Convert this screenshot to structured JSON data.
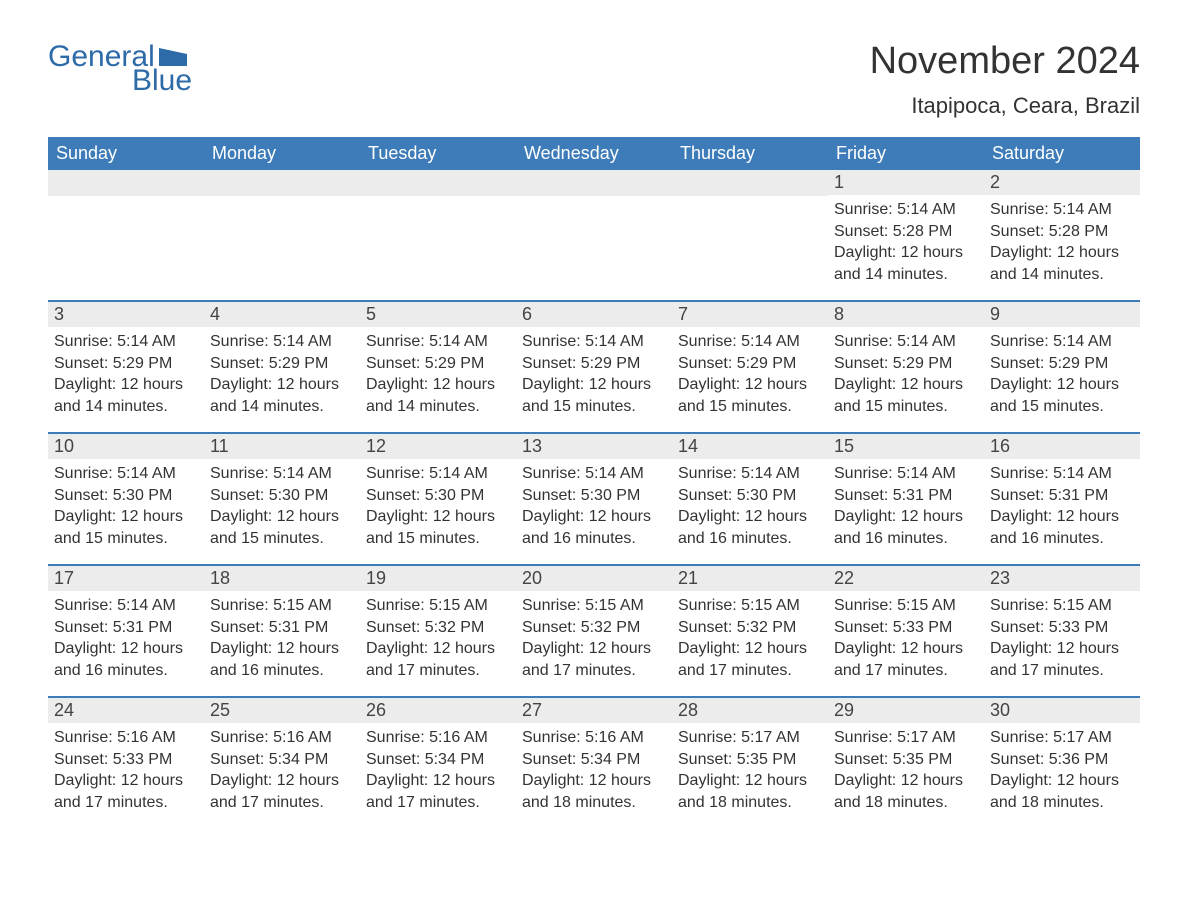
{
  "logo": {
    "text1": "General",
    "text2": "Blue",
    "shape_color": "#2d6aa8"
  },
  "title": "November 2024",
  "location": "Itapipoca, Ceara, Brazil",
  "colors": {
    "header_bg": "#3d7cb8",
    "header_text": "#ffffff",
    "daynum_bg": "#ececec",
    "border": "#3d7cb8",
    "text": "#333333",
    "logo": "#2d6aa8"
  },
  "weekdays": [
    "Sunday",
    "Monday",
    "Tuesday",
    "Wednesday",
    "Thursday",
    "Friday",
    "Saturday"
  ],
  "weeks": [
    [
      null,
      null,
      null,
      null,
      null,
      {
        "n": "1",
        "sunrise": "5:14 AM",
        "sunset": "5:28 PM",
        "daylight": "12 hours and 14 minutes."
      },
      {
        "n": "2",
        "sunrise": "5:14 AM",
        "sunset": "5:28 PM",
        "daylight": "12 hours and 14 minutes."
      }
    ],
    [
      {
        "n": "3",
        "sunrise": "5:14 AM",
        "sunset": "5:29 PM",
        "daylight": "12 hours and 14 minutes."
      },
      {
        "n": "4",
        "sunrise": "5:14 AM",
        "sunset": "5:29 PM",
        "daylight": "12 hours and 14 minutes."
      },
      {
        "n": "5",
        "sunrise": "5:14 AM",
        "sunset": "5:29 PM",
        "daylight": "12 hours and 14 minutes."
      },
      {
        "n": "6",
        "sunrise": "5:14 AM",
        "sunset": "5:29 PM",
        "daylight": "12 hours and 15 minutes."
      },
      {
        "n": "7",
        "sunrise": "5:14 AM",
        "sunset": "5:29 PM",
        "daylight": "12 hours and 15 minutes."
      },
      {
        "n": "8",
        "sunrise": "5:14 AM",
        "sunset": "5:29 PM",
        "daylight": "12 hours and 15 minutes."
      },
      {
        "n": "9",
        "sunrise": "5:14 AM",
        "sunset": "5:29 PM",
        "daylight": "12 hours and 15 minutes."
      }
    ],
    [
      {
        "n": "10",
        "sunrise": "5:14 AM",
        "sunset": "5:30 PM",
        "daylight": "12 hours and 15 minutes."
      },
      {
        "n": "11",
        "sunrise": "5:14 AM",
        "sunset": "5:30 PM",
        "daylight": "12 hours and 15 minutes."
      },
      {
        "n": "12",
        "sunrise": "5:14 AM",
        "sunset": "5:30 PM",
        "daylight": "12 hours and 15 minutes."
      },
      {
        "n": "13",
        "sunrise": "5:14 AM",
        "sunset": "5:30 PM",
        "daylight": "12 hours and 16 minutes."
      },
      {
        "n": "14",
        "sunrise": "5:14 AM",
        "sunset": "5:30 PM",
        "daylight": "12 hours and 16 minutes."
      },
      {
        "n": "15",
        "sunrise": "5:14 AM",
        "sunset": "5:31 PM",
        "daylight": "12 hours and 16 minutes."
      },
      {
        "n": "16",
        "sunrise": "5:14 AM",
        "sunset": "5:31 PM",
        "daylight": "12 hours and 16 minutes."
      }
    ],
    [
      {
        "n": "17",
        "sunrise": "5:14 AM",
        "sunset": "5:31 PM",
        "daylight": "12 hours and 16 minutes."
      },
      {
        "n": "18",
        "sunrise": "5:15 AM",
        "sunset": "5:31 PM",
        "daylight": "12 hours and 16 minutes."
      },
      {
        "n": "19",
        "sunrise": "5:15 AM",
        "sunset": "5:32 PM",
        "daylight": "12 hours and 17 minutes."
      },
      {
        "n": "20",
        "sunrise": "5:15 AM",
        "sunset": "5:32 PM",
        "daylight": "12 hours and 17 minutes."
      },
      {
        "n": "21",
        "sunrise": "5:15 AM",
        "sunset": "5:32 PM",
        "daylight": "12 hours and 17 minutes."
      },
      {
        "n": "22",
        "sunrise": "5:15 AM",
        "sunset": "5:33 PM",
        "daylight": "12 hours and 17 minutes."
      },
      {
        "n": "23",
        "sunrise": "5:15 AM",
        "sunset": "5:33 PM",
        "daylight": "12 hours and 17 minutes."
      }
    ],
    [
      {
        "n": "24",
        "sunrise": "5:16 AM",
        "sunset": "5:33 PM",
        "daylight": "12 hours and 17 minutes."
      },
      {
        "n": "25",
        "sunrise": "5:16 AM",
        "sunset": "5:34 PM",
        "daylight": "12 hours and 17 minutes."
      },
      {
        "n": "26",
        "sunrise": "5:16 AM",
        "sunset": "5:34 PM",
        "daylight": "12 hours and 17 minutes."
      },
      {
        "n": "27",
        "sunrise": "5:16 AM",
        "sunset": "5:34 PM",
        "daylight": "12 hours and 18 minutes."
      },
      {
        "n": "28",
        "sunrise": "5:17 AM",
        "sunset": "5:35 PM",
        "daylight": "12 hours and 18 minutes."
      },
      {
        "n": "29",
        "sunrise": "5:17 AM",
        "sunset": "5:35 PM",
        "daylight": "12 hours and 18 minutes."
      },
      {
        "n": "30",
        "sunrise": "5:17 AM",
        "sunset": "5:36 PM",
        "daylight": "12 hours and 18 minutes."
      }
    ]
  ],
  "labels": {
    "sunrise": "Sunrise:",
    "sunset": "Sunset:",
    "daylight": "Daylight:"
  }
}
